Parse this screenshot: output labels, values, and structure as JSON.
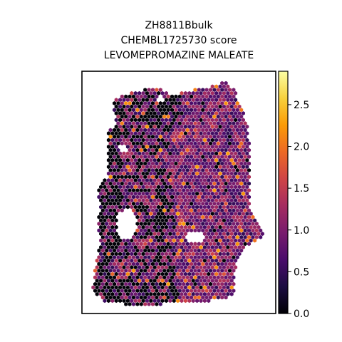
{
  "chart_data": {
    "type": "scatter",
    "title_lines": [
      "ZH8811Bbulk",
      "CHEMBL1725730 score",
      "LEVOMEPROMAZINE MALEATE"
    ],
    "xlabel": "",
    "ylabel": "",
    "axes_ticks": "none",
    "marker": "hexagon spots (spatial transcriptomics)",
    "colormap": "inferno",
    "colorbar": {
      "range": [
        0.0,
        2.9
      ],
      "ticks": [
        0.0,
        0.5,
        1.0,
        1.5,
        2.0,
        2.5
      ],
      "tick_labels": [
        "0.0",
        "0.5",
        "1.0",
        "1.5",
        "2.0",
        "2.5"
      ]
    },
    "value_distribution": "mostly 0.6-1.3 (purple/magenta) with dense 0.0 (black) patches on the left half and scattered 1.6-2.3 (orange) spots"
  },
  "colors": {
    "frame": "#000000",
    "inferno_stops": [
      "#000004",
      "#1b0c41",
      "#4a0c6b",
      "#781c6d",
      "#a52c60",
      "#cf4446",
      "#ed6925",
      "#fb9b06",
      "#f7d13d",
      "#fcffa4"
    ]
  }
}
